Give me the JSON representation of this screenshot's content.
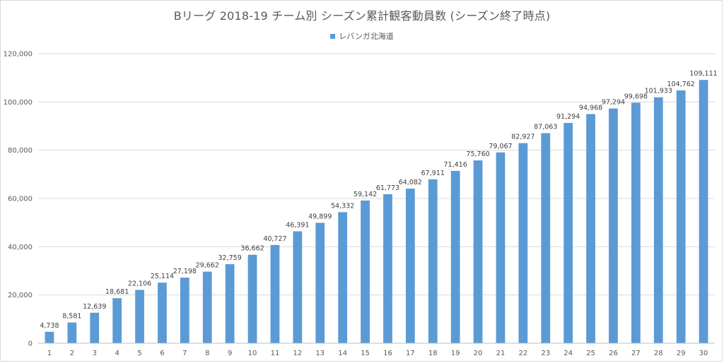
{
  "chart_data": {
    "type": "bar",
    "title": "Bリーグ 2018-19 チーム別 シーズン累計観客動員数 (シーズン終了時点)",
    "legend": {
      "position": "top",
      "entries": [
        "レバンガ北海道"
      ]
    },
    "categories": [
      "1",
      "2",
      "3",
      "4",
      "5",
      "6",
      "7",
      "8",
      "9",
      "10",
      "11",
      "12",
      "13",
      "14",
      "15",
      "16",
      "17",
      "18",
      "19",
      "20",
      "21",
      "22",
      "23",
      "24",
      "25",
      "26",
      "27",
      "28",
      "29",
      "30"
    ],
    "series": [
      {
        "name": "レバンガ北海道",
        "color": "#5b9bd5",
        "values": [
          4738,
          8581,
          12639,
          18681,
          22106,
          25114,
          27198,
          29662,
          32759,
          36662,
          40727,
          46391,
          49899,
          54332,
          59142,
          61773,
          64082,
          67911,
          71416,
          75760,
          79067,
          82927,
          87063,
          91294,
          94968,
          97294,
          99698,
          101933,
          104762,
          109111
        ],
        "data_labels": [
          "4,738",
          "8,581",
          "12,639",
          "18,681",
          "22,106",
          "25,114",
          "27,198",
          "29,662",
          "32,759",
          "36,662",
          "40,727",
          "46,391",
          "49,899",
          "54,332",
          "59,142",
          "61,773",
          "64,082",
          "67,911",
          "71,416",
          "75,760",
          "79,067",
          "82,927",
          "87,063",
          "91,294",
          "94,968",
          "97,294",
          "99,698",
          "101,933",
          "104,762",
          "109,111"
        ]
      }
    ],
    "y_ticks": [
      0,
      20000,
      40000,
      60000,
      80000,
      100000,
      120000
    ],
    "y_tick_labels": [
      "0",
      "20,000",
      "40,000",
      "60,000",
      "80,000",
      "100,000",
      "120,000"
    ],
    "ylim": [
      0,
      120000
    ],
    "xlabel": "",
    "ylabel": "",
    "grid": true,
    "colors": {
      "bar": "#5b9bd5",
      "grid": "#d9d9d9",
      "text": "#595959"
    }
  }
}
